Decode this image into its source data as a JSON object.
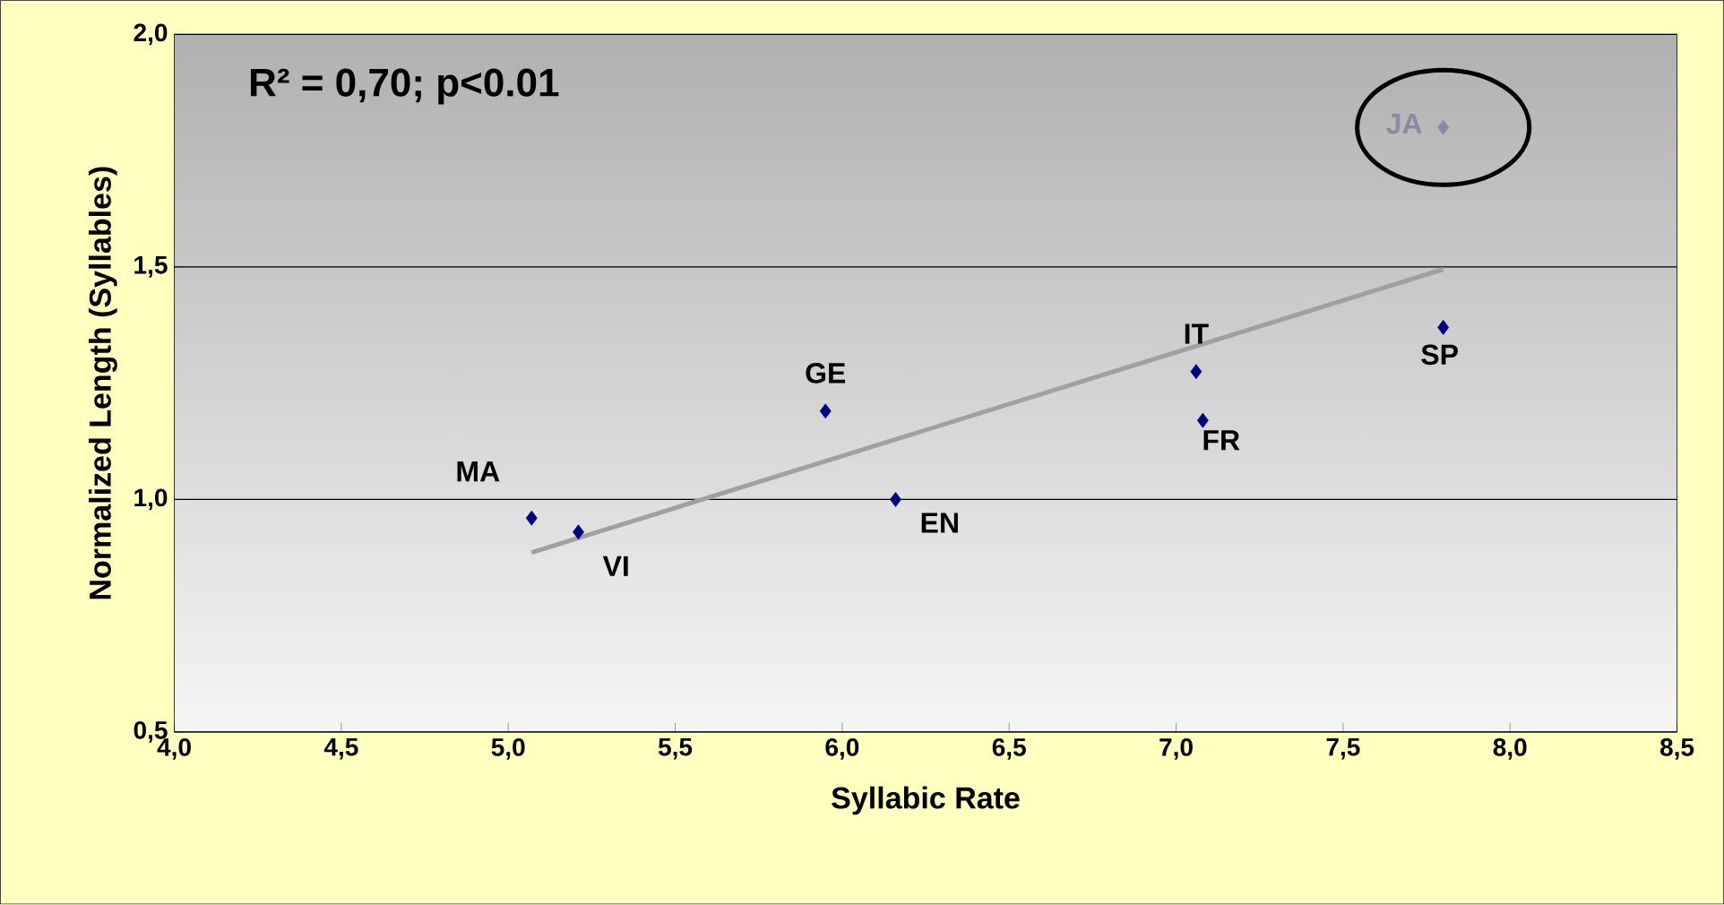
{
  "chart_data": {
    "type": "scatter",
    "xlabel": "Syllabic Rate",
    "ylabel": "Normalized Length (Syllables)",
    "xlim": [
      4,
      8.5
    ],
    "ylim": [
      0.5,
      2.0
    ],
    "xticks": [
      {
        "value": 4,
        "label": "4,0"
      },
      {
        "value": 4.5,
        "label": "4,5"
      },
      {
        "value": 5,
        "label": "5,0"
      },
      {
        "value": 5.5,
        "label": "5,5"
      },
      {
        "value": 6,
        "label": "6,0"
      },
      {
        "value": 6.5,
        "label": "6,5"
      },
      {
        "value": 7,
        "label": "7,0"
      },
      {
        "value": 7.5,
        "label": "7,5"
      },
      {
        "value": 8,
        "label": "8,0"
      },
      {
        "value": 8.5,
        "label": "8,5"
      }
    ],
    "yticks": [
      {
        "value": 0.5,
        "label": "0,5"
      },
      {
        "value": 1.0,
        "label": "1,0"
      },
      {
        "value": 1.5,
        "label": "1,5"
      },
      {
        "value": 2.0,
        "label": "2,0"
      }
    ],
    "grid": "y",
    "marker": "diamond",
    "series": [
      {
        "color": "#000080",
        "x": [
          5.07,
          5.21,
          5.95,
          6.16,
          7.06,
          7.08,
          7.8
        ],
        "values": [
          0.96,
          0.93,
          1.19,
          1.0,
          1.275,
          1.17,
          1.37
        ]
      },
      {
        "color": "#8a8aa8",
        "x": [
          7.8
        ],
        "values": [
          1.8
        ]
      },
      {
        "type": "line",
        "marker": "none",
        "color": "#a0a0a0",
        "x": [
          5.07,
          7.8
        ],
        "values": [
          0.886,
          1.495
        ]
      }
    ],
    "annotations": [
      "R² = 0,70;  p<0.01",
      {
        "text": "MA",
        "x": 5.07,
        "y": 0.96
      },
      {
        "text": "VI",
        "x": 5.21,
        "y": 0.93
      },
      {
        "text": "GE",
        "x": 5.95,
        "y": 1.19
      },
      {
        "text": "EN",
        "x": 6.16,
        "y": 1.0
      },
      {
        "text": "IT",
        "x": 7.06,
        "y": 1.275
      },
      {
        "text": "FR",
        "x": 7.08,
        "y": 1.17
      },
      {
        "text": "SP",
        "x": 7.8,
        "y": 1.37
      },
      {
        "text": "JA",
        "x": 7.8,
        "y": 1.8
      }
    ]
  }
}
